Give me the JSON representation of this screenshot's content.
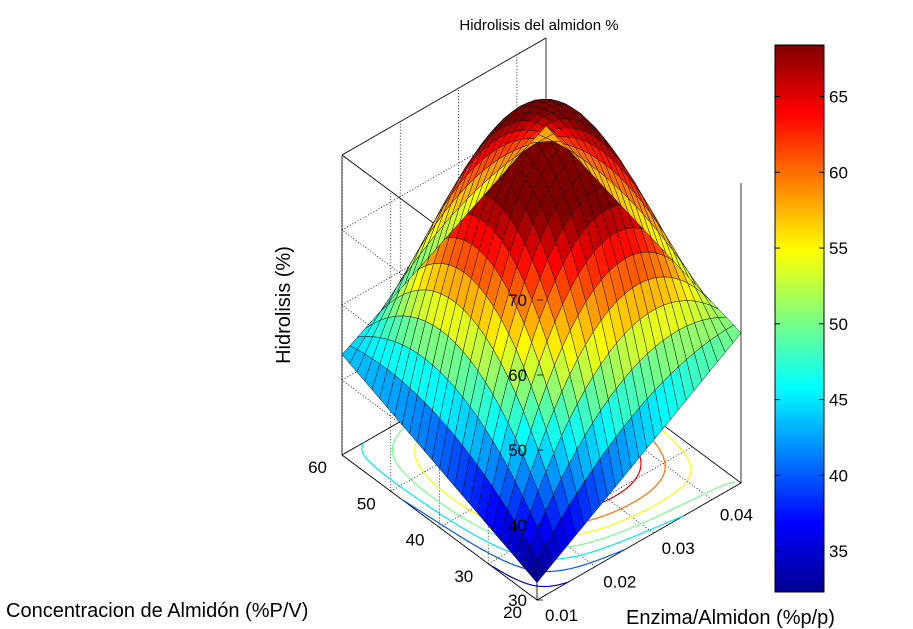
{
  "chart_data": {
    "type": "surface",
    "title": "Hidrolisis del almidon %",
    "xlabel": "Enzima/Almidon (%p/p)",
    "ylabel": "Concentracion de Almidón (%P/V)",
    "zlabel": "Hidrolisis (%)",
    "x_ticks": [
      "0.01",
      "0.02",
      "0.03",
      "0.04"
    ],
    "x_tick_values": [
      0.01,
      0.02,
      0.03,
      0.04
    ],
    "y_ticks": [
      "20",
      "30",
      "40",
      "50",
      "60"
    ],
    "y_tick_values": [
      20,
      30,
      40,
      50,
      60
    ],
    "z_ticks": [
      "30",
      "40",
      "50",
      "60",
      "70"
    ],
    "z_tick_values": [
      30,
      40,
      50,
      60,
      70
    ],
    "xlim": [
      0.01,
      0.045
    ],
    "ylim": [
      20,
      60
    ],
    "zlim": [
      30,
      70
    ],
    "grid": true,
    "colormap": "jet",
    "colorbar": {
      "ticks": [
        "35",
        "40",
        "45",
        "50",
        "55",
        "60",
        "65"
      ],
      "tick_values": [
        35,
        40,
        45,
        50,
        55,
        60,
        65
      ],
      "range": [
        32.3,
        68.4
      ]
    },
    "surface_corners": [
      {
        "x": 0.01,
        "y": 20,
        "z": 32.3
      },
      {
        "x": 0.01,
        "y": 60,
        "z": 43.4
      },
      {
        "x": 0.045,
        "y": 20,
        "z": 50.0
      },
      {
        "x": 0.045,
        "y": 60,
        "z": 58.3
      }
    ],
    "peak": {
      "x": 0.038,
      "y": 48,
      "z": 68.4
    },
    "contour_levels": [
      35,
      40,
      45,
      50,
      55,
      60,
      65
    ]
  }
}
